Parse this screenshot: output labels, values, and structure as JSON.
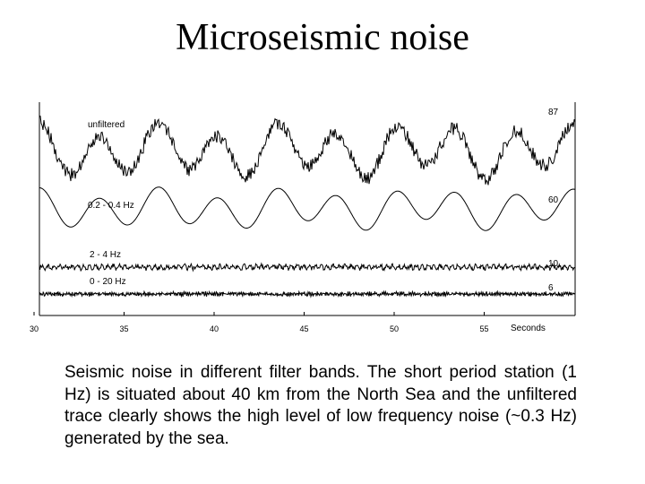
{
  "slide": {
    "title": "Microseismic noise",
    "caption": "Seismic noise in different filter bands. The short period station (1 Hz) is situated about 40 km from the North Sea and the unfiltered trace clearly shows the high level of low frequency noise (~0.3 Hz) generated by the sea."
  },
  "chart_data": {
    "type": "line",
    "title": "",
    "xlabel": "Seconds",
    "ylabel": "",
    "x_ticks": [
      "30",
      "35",
      "40",
      "45",
      "50",
      "55"
    ],
    "xlim": [
      30,
      60
    ],
    "grid": false,
    "line_color": "#000000",
    "series": [
      {
        "name": "unfiltered",
        "amplitude": "87",
        "dominant_period_s": 3.3,
        "noise": "high"
      },
      {
        "name": "0.2 - 0.4 Hz",
        "amplitude": "60",
        "dominant_period_s": 3.3,
        "noise": "none"
      },
      {
        "name": "2 - 4 Hz",
        "amplitude": "10",
        "dominant_period_s": 0.33,
        "noise": "medium"
      },
      {
        "name": "0 - 20 Hz",
        "amplitude": "6",
        "dominant_period_s": 0.1,
        "noise": "high"
      }
    ]
  }
}
